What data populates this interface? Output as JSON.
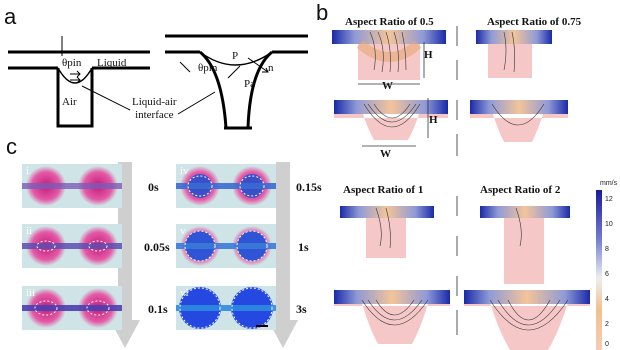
{
  "panel_a": {
    "letter": "a",
    "labels": {
      "theta_pin": "θpin",
      "liquid": "Liquid",
      "air": "Air",
      "theta_pin2": "θpin",
      "p": "P",
      "n": "n",
      "pa": "Pa",
      "interface": "Liquid-air\ninterface"
    }
  },
  "panel_b": {
    "letter": "b",
    "titles": [
      "Aspect Ratio of 0.5",
      "Aspect Ratio of 0.75",
      "Aspect Ratio of 1",
      "Aspect Ratio of 2"
    ],
    "dim_h": "H",
    "dim_w": "W",
    "colorbar": {
      "unit": "mm/s",
      "ticks": [
        "12",
        "10",
        "8",
        "6",
        "4",
        "2",
        "0"
      ]
    }
  },
  "panel_c": {
    "letter": "c",
    "tiles_left": [
      {
        "roman": "i",
        "time": "0s"
      },
      {
        "roman": "ii",
        "time": "0.05s"
      },
      {
        "roman": "iii",
        "time": "0.1s"
      }
    ],
    "tiles_right": [
      {
        "roman": "iv",
        "time": "0.15s"
      },
      {
        "roman": "v",
        "time": "1s"
      },
      {
        "roman": "vi",
        "time": "3s"
      }
    ]
  },
  "colors": {
    "flow_blue": "#1a2aa8",
    "flow_orange": "#f3c49a",
    "pink_air": "#f6c7c7",
    "magenta": "#d6388e",
    "arrow_gray": "#cfcfcf"
  }
}
